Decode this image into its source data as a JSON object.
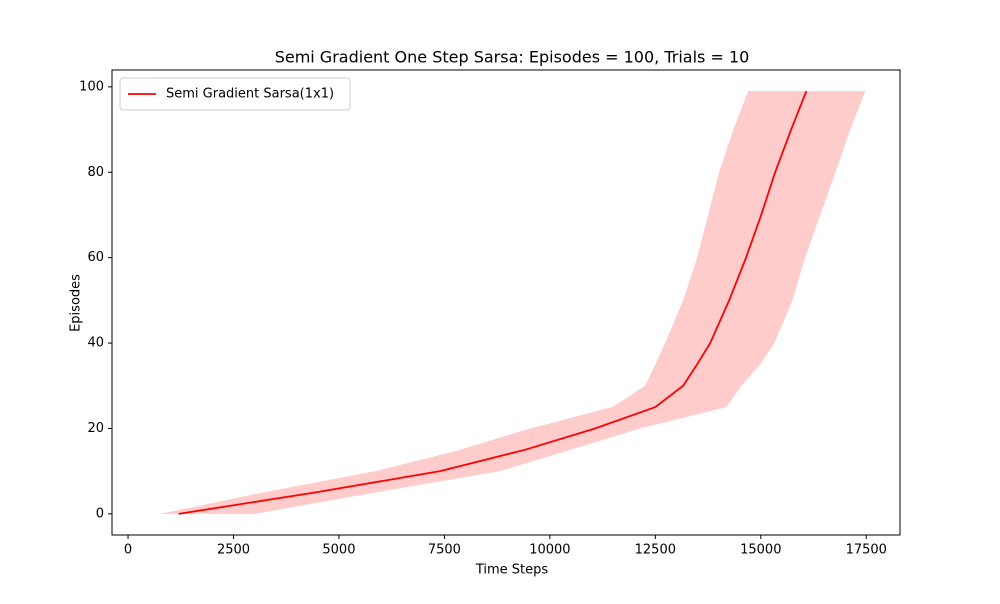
{
  "chart_data": {
    "type": "line",
    "title": "Semi Gradient One Step Sarsa: Episodes = 100, Trials = 10",
    "x_label": "Time Steps",
    "y_label": "Episodes",
    "xlim": [
      -380,
      18300
    ],
    "ylim": [
      -4.95,
      103.95
    ],
    "xticks": [
      0,
      2500,
      5000,
      7500,
      10000,
      12500,
      15000,
      17500
    ],
    "yticks": [
      0,
      20,
      40,
      60,
      80,
      100
    ],
    "grid": false,
    "legend": "upper left",
    "series": [
      {
        "name": "Semi Gradient Sarsa(1x1)",
        "color": "#ff0000",
        "band_color": "#ffcccc",
        "y": [
          0,
          5,
          10,
          15,
          20,
          25,
          30,
          35,
          40,
          50,
          60,
          70,
          80,
          90,
          99
        ],
        "x": [
          1200,
          4430,
          7400,
          9410,
          11070,
          12500,
          13160,
          13490,
          13800,
          14250,
          14650,
          15010,
          15340,
          15720,
          16080
        ],
        "x_lower": [
          760,
          3200,
          5860,
          7870,
          9530,
          11480,
          12260,
          12500,
          12730,
          13160,
          13490,
          13750,
          14010,
          14350,
          14700
        ],
        "x_upper": [
          3000,
          5860,
          8820,
          10480,
          12140,
          14180,
          14540,
          14990,
          15320,
          15750,
          16050,
          16410,
          16770,
          17120,
          17480
        ]
      }
    ]
  }
}
